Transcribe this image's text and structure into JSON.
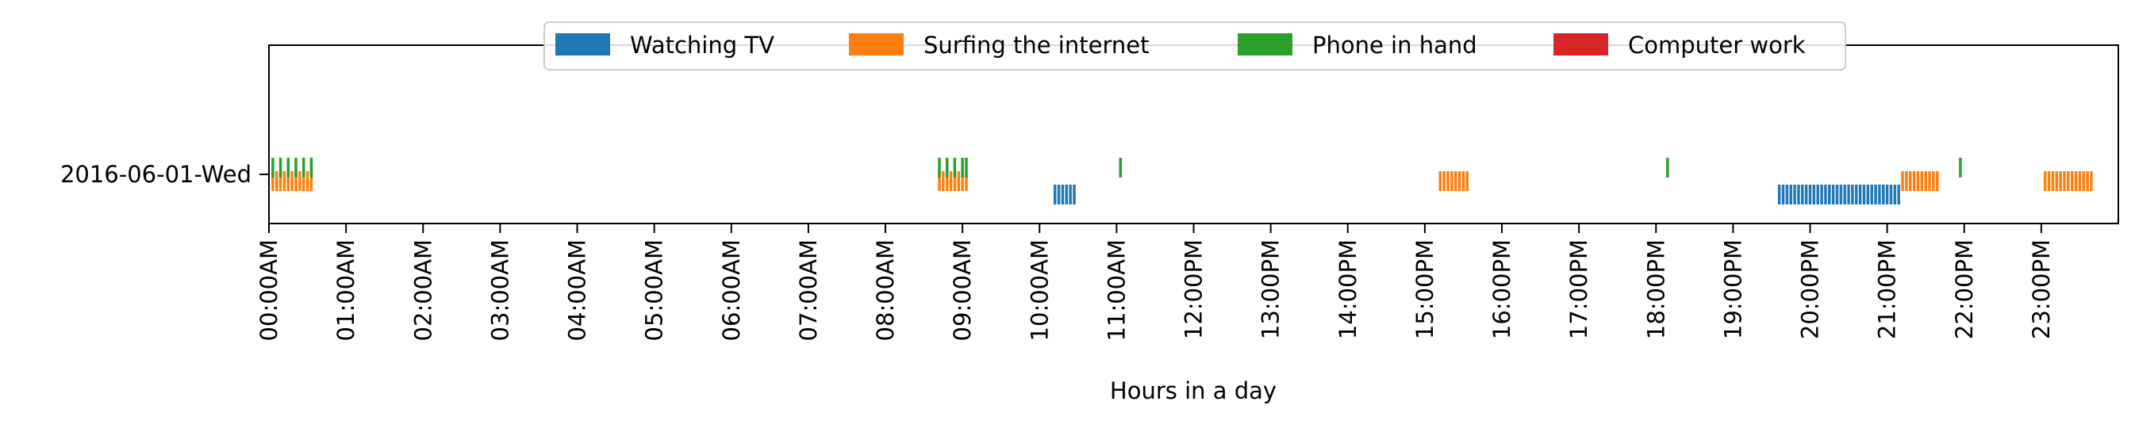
{
  "chart_data": {
    "type": "event-raster",
    "title": "",
    "xlabel": "Hours in a day",
    "ylabel": "",
    "categories": [
      "2016-06-01-Wed"
    ],
    "xlim_hours": [
      0,
      24
    ],
    "x_ticks": [
      "00:00AM",
      "01:00AM",
      "02:00AM",
      "03:00AM",
      "04:00AM",
      "05:00AM",
      "06:00AM",
      "07:00AM",
      "08:00AM",
      "09:00AM",
      "10:00AM",
      "11:00AM",
      "12:00PM",
      "13:00PM",
      "14:00PM",
      "15:00PM",
      "16:00PM",
      "17:00PM",
      "18:00PM",
      "19:00PM",
      "20:00PM",
      "21:00PM",
      "22:00PM",
      "23:00PM"
    ],
    "legend_placement": "top-center",
    "grid": false,
    "series": [
      {
        "name": "Watching TV",
        "color": "#1f77b4",
        "events_hours": [
          10.2,
          10.25,
          10.3,
          10.35,
          10.4,
          10.45,
          19.6,
          19.65,
          19.7,
          19.75,
          19.8,
          19.85,
          19.9,
          19.95,
          20.0,
          20.05,
          20.1,
          20.15,
          20.2,
          20.25,
          20.3,
          20.35,
          20.4,
          20.45,
          20.5,
          20.55,
          20.6,
          20.65,
          20.7,
          20.75,
          20.8,
          20.85,
          20.9,
          20.95,
          21.0,
          21.05,
          21.1,
          21.15
        ]
      },
      {
        "name": "Surfing the internet",
        "color": "#ff7f0e",
        "events_hours": [
          0.05,
          0.1,
          0.15,
          0.2,
          0.25,
          0.3,
          0.35,
          0.4,
          0.45,
          0.5,
          0.55,
          8.7,
          8.75,
          8.8,
          8.85,
          8.9,
          8.95,
          9.0,
          9.05,
          15.2,
          15.25,
          15.3,
          15.35,
          15.4,
          15.45,
          15.5,
          15.55,
          21.2,
          21.25,
          21.3,
          21.35,
          21.4,
          21.45,
          21.5,
          21.55,
          21.6,
          21.65,
          23.05,
          23.1,
          23.15,
          23.2,
          23.25,
          23.3,
          23.35,
          23.4,
          23.45,
          23.5,
          23.55,
          23.6,
          23.65
        ]
      },
      {
        "name": "Phone in hand",
        "color": "#2ca02c",
        "events_hours": [
          0.05,
          0.15,
          0.25,
          0.35,
          0.45,
          0.55,
          8.7,
          8.8,
          8.9,
          9.0,
          9.05,
          11.05,
          18.15,
          21.95
        ]
      },
      {
        "name": "Computer work",
        "color": "#d62728",
        "events_hours": []
      }
    ]
  }
}
